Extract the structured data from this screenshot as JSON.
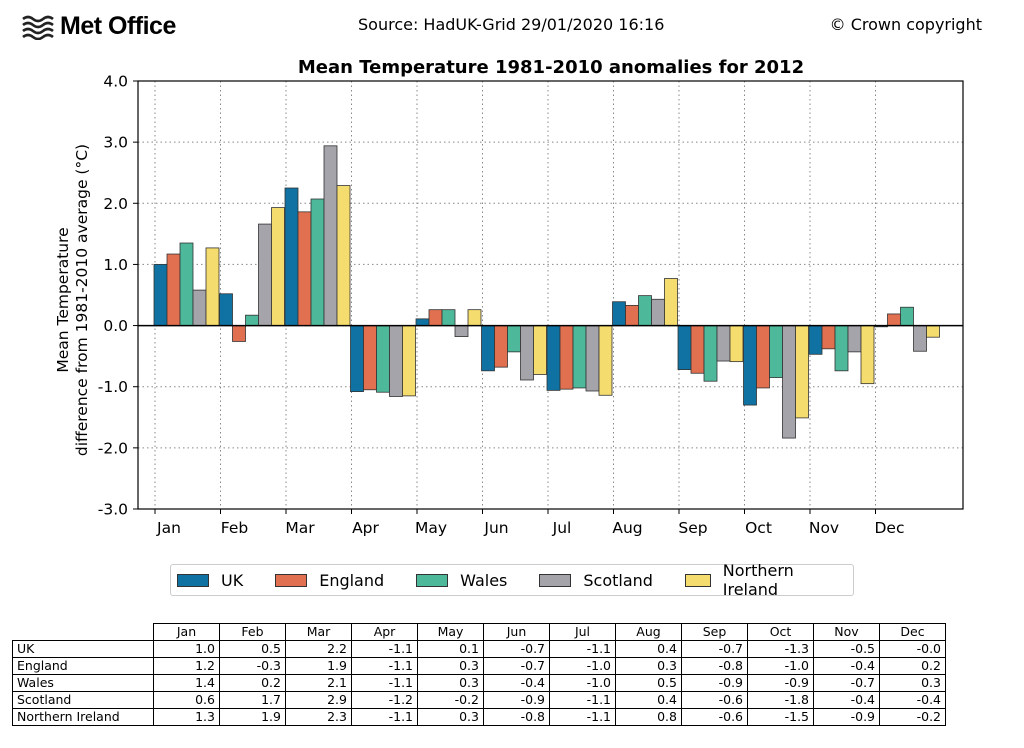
{
  "header": {
    "logo_text": "Met Office",
    "source": "Source: HadUK-Grid 29/01/2020 16:16",
    "copyright": "© Crown copyright"
  },
  "chart_data": {
    "type": "bar",
    "title": "Mean Temperature 1981-2010 anomalies for 2012",
    "ylabel_line1": "Mean Temperature",
    "ylabel_line2": "difference from 1981-2010 average (°C)",
    "xlabel": "",
    "ylim": [
      -3.0,
      4.0
    ],
    "yticks": [
      -3.0,
      -2.0,
      -1.0,
      0.0,
      1.0,
      2.0,
      3.0,
      4.0
    ],
    "ytick_labels": [
      "-3.0",
      "-2.0",
      "-1.0",
      "0.0",
      "1.0",
      "2.0",
      "3.0",
      "4.0"
    ],
    "grid": true,
    "legend_position": "bottom",
    "categories": [
      "Jan",
      "Feb",
      "Mar",
      "Apr",
      "May",
      "Jun",
      "Jul",
      "Aug",
      "Sep",
      "Oct",
      "Nov",
      "Dec"
    ],
    "series": [
      {
        "name": "UK",
        "color": "#0f72a2",
        "values": [
          1.0,
          0.52,
          2.25,
          -1.08,
          0.11,
          -0.74,
          -1.06,
          0.39,
          -0.72,
          -1.3,
          -0.47,
          -0.02
        ]
      },
      {
        "name": "England",
        "color": "#e07050",
        "values": [
          1.17,
          -0.26,
          1.86,
          -1.05,
          0.26,
          -0.68,
          -1.04,
          0.33,
          -0.78,
          -1.02,
          -0.38,
          0.19
        ]
      },
      {
        "name": "Wales",
        "color": "#4db89a",
        "values": [
          1.35,
          0.17,
          2.07,
          -1.09,
          0.26,
          -0.43,
          -1.02,
          0.49,
          -0.91,
          -0.85,
          -0.74,
          0.3
        ]
      },
      {
        "name": "Scotland",
        "color": "#a4a4aa",
        "values": [
          0.58,
          1.66,
          2.94,
          -1.16,
          -0.18,
          -0.89,
          -1.07,
          0.43,
          -0.58,
          -1.84,
          -0.43,
          -0.42
        ]
      },
      {
        "name": "Northern Ireland",
        "color": "#f5dc6e",
        "values": [
          1.27,
          1.93,
          2.29,
          -1.15,
          0.26,
          -0.8,
          -1.14,
          0.77,
          -0.59,
          -1.51,
          -0.95,
          -0.19
        ]
      }
    ]
  },
  "table": {
    "columns": [
      "Jan",
      "Feb",
      "Mar",
      "Apr",
      "May",
      "Jun",
      "Jul",
      "Aug",
      "Sep",
      "Oct",
      "Nov",
      "Dec"
    ],
    "rows": [
      {
        "label": "UK",
        "values": [
          "1.0",
          "0.5",
          "2.2",
          "-1.1",
          "0.1",
          "-0.7",
          "-1.1",
          "0.4",
          "-0.7",
          "-1.3",
          "-0.5",
          "-0.0"
        ]
      },
      {
        "label": "England",
        "values": [
          "1.2",
          "-0.3",
          "1.9",
          "-1.1",
          "0.3",
          "-0.7",
          "-1.0",
          "0.3",
          "-0.8",
          "-1.0",
          "-0.4",
          "0.2"
        ]
      },
      {
        "label": "Wales",
        "values": [
          "1.4",
          "0.2",
          "2.1",
          "-1.1",
          "0.3",
          "-0.4",
          "-1.0",
          "0.5",
          "-0.9",
          "-0.9",
          "-0.7",
          "0.3"
        ]
      },
      {
        "label": "Scotland",
        "values": [
          "0.6",
          "1.7",
          "2.9",
          "-1.2",
          "-0.2",
          "-0.9",
          "-1.1",
          "0.4",
          "-0.6",
          "-1.8",
          "-0.4",
          "-0.4"
        ]
      },
      {
        "label": "Northern Ireland",
        "values": [
          "1.3",
          "1.9",
          "2.3",
          "-1.1",
          "0.3",
          "-0.8",
          "-1.1",
          "0.8",
          "-0.6",
          "-1.5",
          "-0.9",
          "-0.2"
        ]
      }
    ]
  }
}
